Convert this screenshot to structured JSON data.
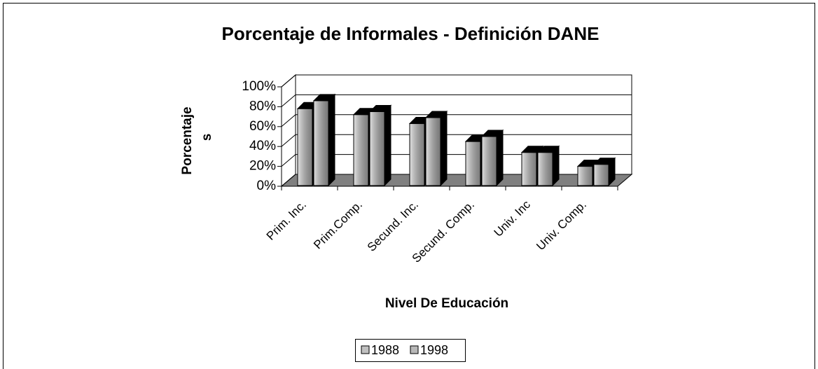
{
  "chart_data": {
    "type": "bar3d",
    "title": "Porcentaje de Informales - Definición DANE",
    "xlabel": "Nivel De Educación",
    "ylabel_lines": [
      "Porcentaje",
      "s"
    ],
    "categories": [
      "Prim. Inc.",
      "Prim.Comp.",
      "Secund. Inc.",
      "Secund. Comp.",
      "Univ. Inc",
      "Univ. Comp."
    ],
    "series": [
      {
        "name": "1988",
        "color": "#c0c0c0",
        "values": [
          78,
          72,
          63,
          45,
          34,
          20
        ]
      },
      {
        "name": "1998",
        "color": "#b8b8b8",
        "values": [
          86,
          75,
          69,
          50,
          34,
          22
        ]
      }
    ],
    "ylim": [
      0,
      100
    ],
    "yticks": [
      {
        "value": 0,
        "label": "0%"
      },
      {
        "value": 20,
        "label": "20%"
      },
      {
        "value": 40,
        "label": "40%"
      },
      {
        "value": 60,
        "label": "60%"
      },
      {
        "value": 80,
        "label": "80%"
      },
      {
        "value": 100,
        "label": "100%"
      }
    ],
    "grid": true,
    "legend": "bottom"
  }
}
